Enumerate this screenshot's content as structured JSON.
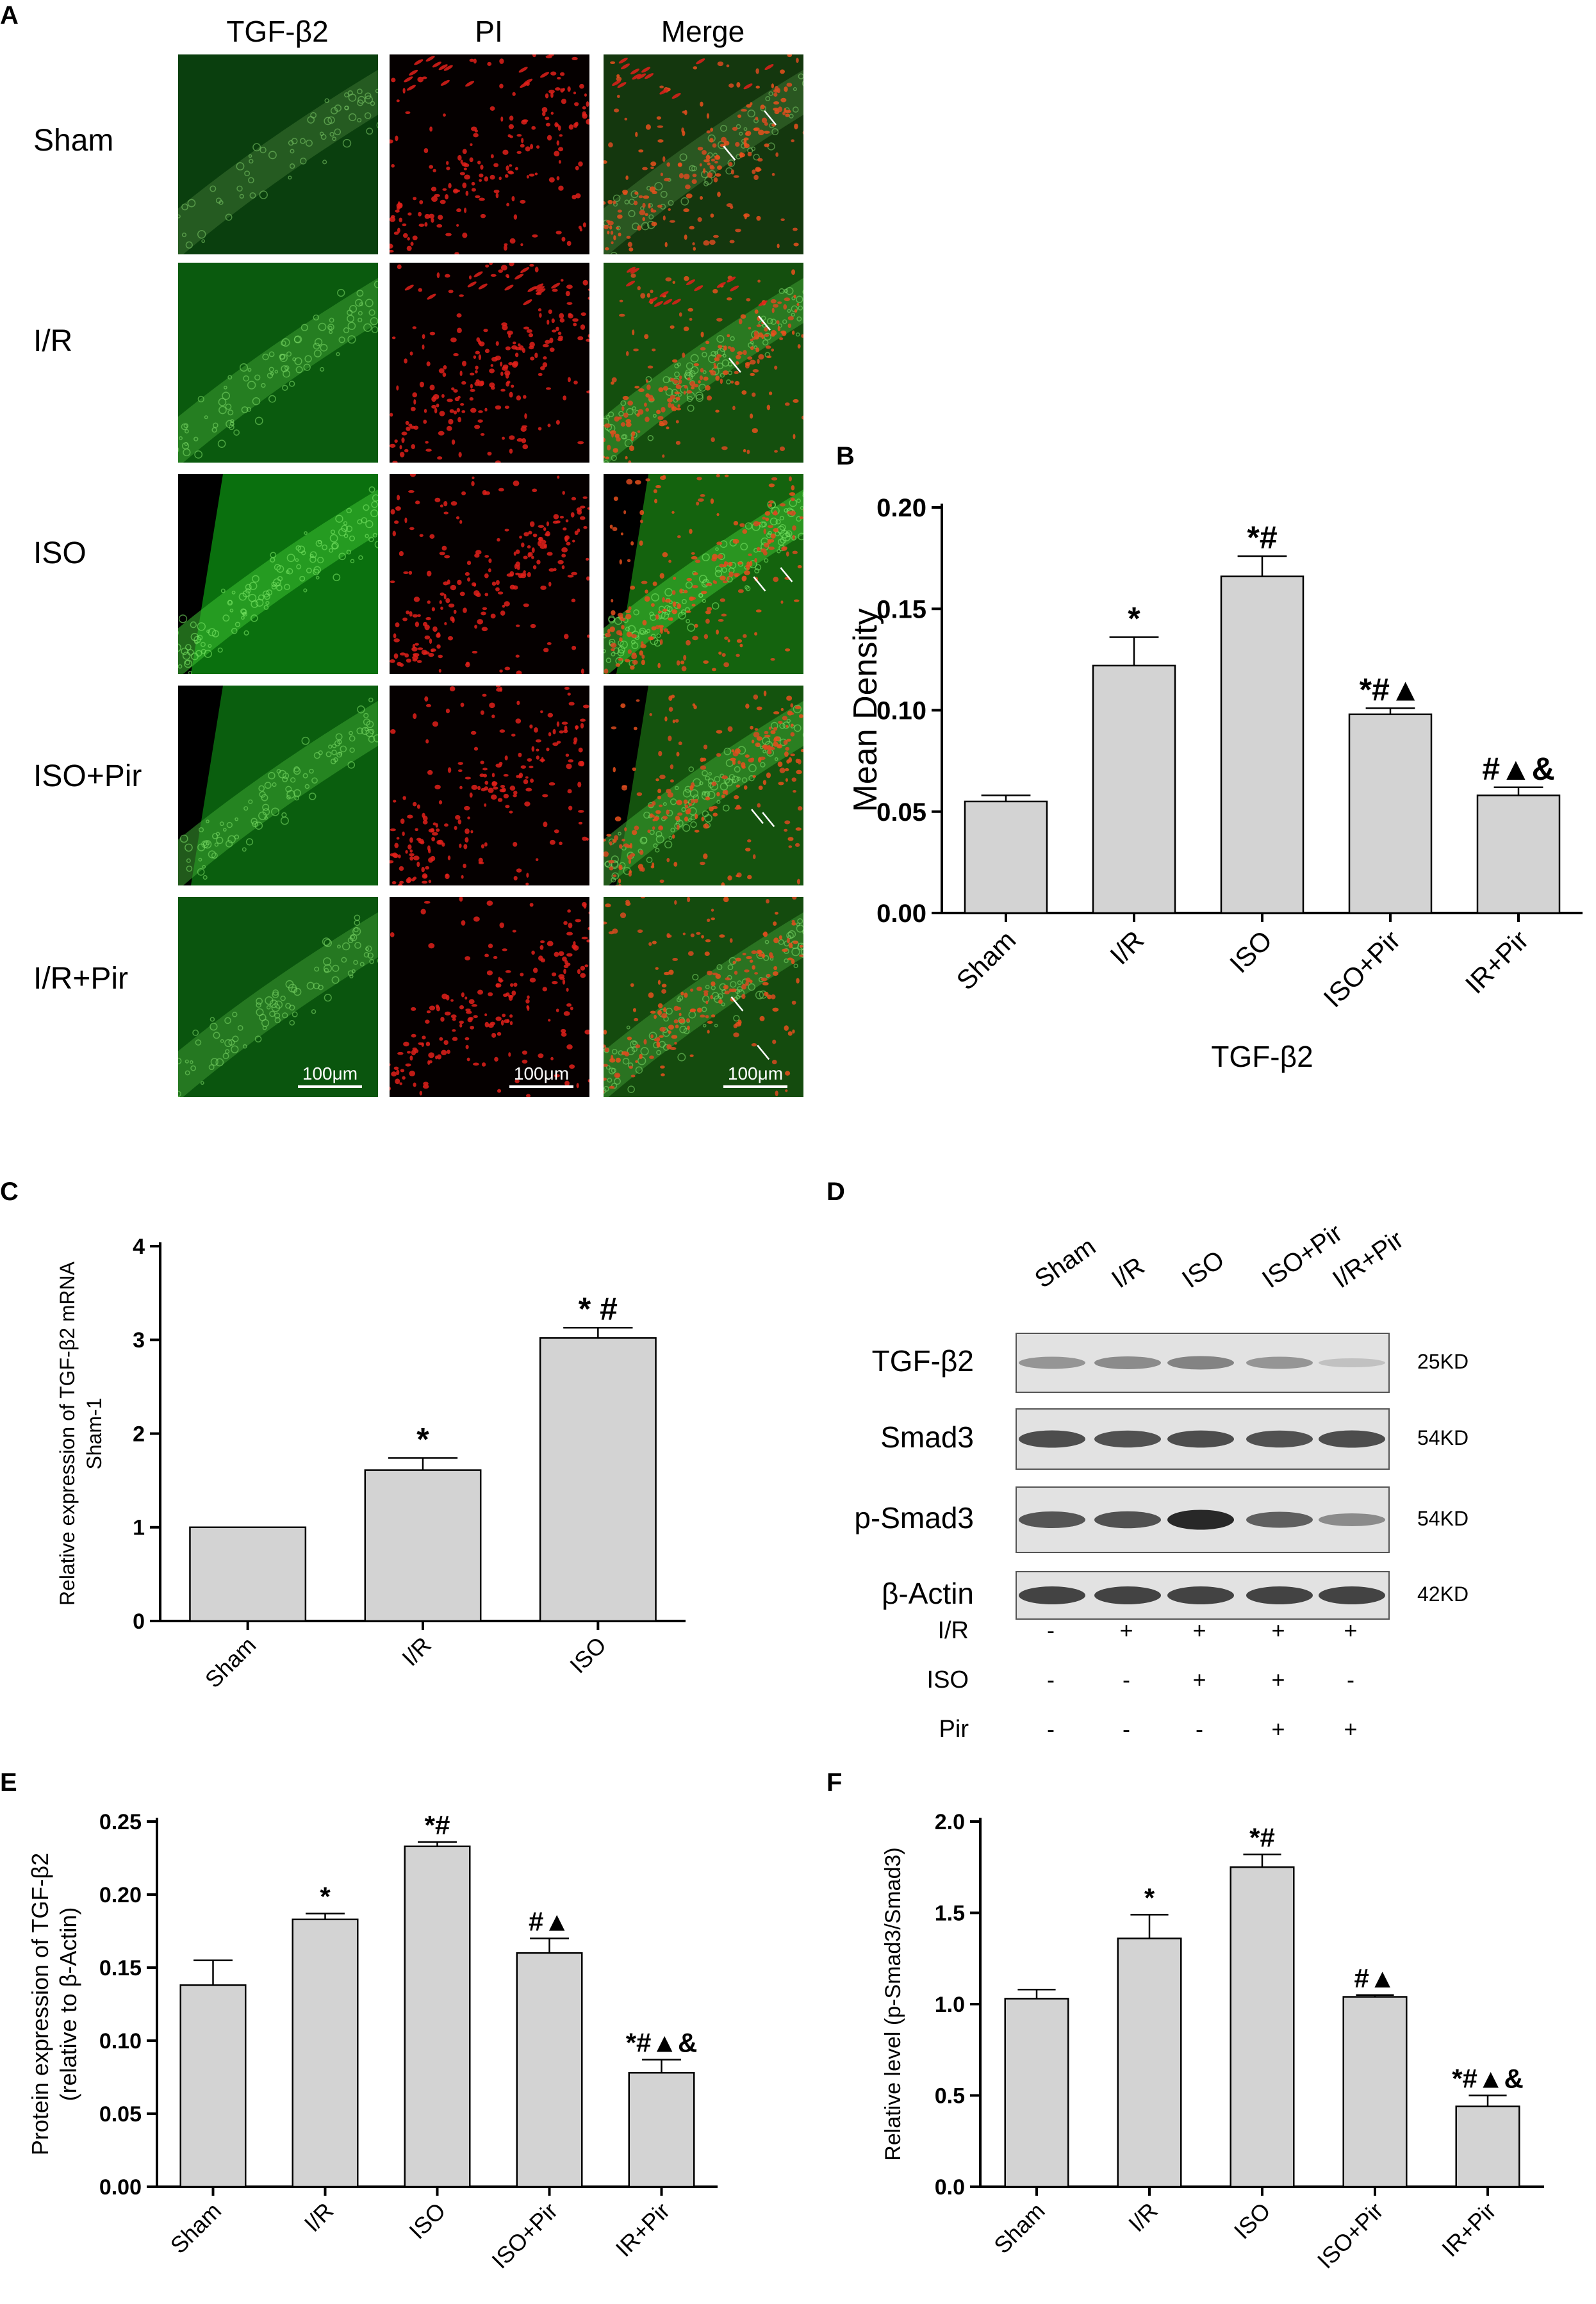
{
  "panel_labels": {
    "A": "A",
    "B": "B",
    "C": "C",
    "D": "D",
    "E": "E",
    "F": "F"
  },
  "panel_a": {
    "columns": [
      "TGF-β2",
      "PI",
      "Merge"
    ],
    "rows": [
      "Sham",
      "I/R",
      "ISO",
      "ISO+Pir",
      "I/R+Pir"
    ],
    "scale_label": "100μm",
    "colors": {
      "green": "#1f8a1f",
      "red": "#e0201a",
      "dark": "#000000"
    }
  },
  "chart_data": [
    {
      "id": "B",
      "type": "bar",
      "categories": [
        "Sham",
        "I/R",
        "ISO",
        "ISO+Pir",
        "IR+Pir"
      ],
      "values": [
        0.055,
        0.122,
        0.166,
        0.098,
        0.058
      ],
      "errors": [
        0.003,
        0.014,
        0.01,
        0.003,
        0.004
      ],
      "annotations": [
        "",
        "*",
        "*#",
        "*#▲",
        "#▲&"
      ],
      "xlabel": "TGF-β2",
      "ylabel": "Mean Density",
      "ylim": [
        0,
        0.2
      ],
      "yticks": [
        "0.00",
        "0.05",
        "0.10",
        "0.15",
        "0.20"
      ],
      "bar_color": "#d3d3d3"
    },
    {
      "id": "C",
      "type": "bar",
      "categories": [
        "Sham",
        "I/R",
        "ISO"
      ],
      "values": [
        1.0,
        1.61,
        3.02
      ],
      "errors": [
        0.0,
        0.13,
        0.11
      ],
      "annotations": [
        "",
        "*",
        "* #"
      ],
      "ylabel": "Relative expression of TGF-β2 mRNA",
      "ylabel2": "Sham-1",
      "ylim": [
        0,
        4
      ],
      "yticks": [
        "0",
        "1",
        "2",
        "3",
        "4"
      ],
      "bar_color": "#d3d3d3"
    },
    {
      "id": "E",
      "type": "bar",
      "categories": [
        "Sham",
        "I/R",
        "ISO",
        "ISO+Pir",
        "IR+Pir"
      ],
      "values": [
        0.138,
        0.183,
        0.233,
        0.16,
        0.078
      ],
      "errors": [
        0.017,
        0.004,
        0.003,
        0.01,
        0.009
      ],
      "annotations": [
        "",
        "*",
        "*#",
        "#▲",
        "*#▲&"
      ],
      "ylabel": "Protein expression of TGF-β2",
      "ylabel2": "(relative to β-Actin)",
      "ylim": [
        0,
        0.25
      ],
      "yticks": [
        "0.00",
        "0.05",
        "0.10",
        "0.15",
        "0.20",
        "0.25"
      ],
      "bar_color": "#d3d3d3"
    },
    {
      "id": "F",
      "type": "bar",
      "categories": [
        "Sham",
        "I/R",
        "ISO",
        "ISO+Pir",
        "IR+Pir"
      ],
      "values": [
        1.03,
        1.36,
        1.75,
        1.04,
        0.44
      ],
      "errors": [
        0.05,
        0.13,
        0.07,
        0.01,
        0.06
      ],
      "annotations": [
        "",
        "*",
        "*#",
        "#▲",
        "*#▲&"
      ],
      "ylabel": "Relative level (p-Smad3/Smad3)",
      "ylim": [
        0,
        2.0
      ],
      "yticks": [
        "0.0",
        "0.5",
        "1.0",
        "1.5",
        "2.0"
      ],
      "bar_color": "#d3d3d3"
    }
  ],
  "panel_d": {
    "lanes": [
      "Sham",
      "I/R",
      "ISO",
      "ISO+Pir",
      "I/R+Pir"
    ],
    "bands": [
      {
        "name": "TGF-β2",
        "kd": "25KD",
        "intensity": [
          0.35,
          0.4,
          0.45,
          0.35,
          0.1
        ]
      },
      {
        "name": "Smad3",
        "kd": "54KD",
        "intensity": [
          0.75,
          0.72,
          0.74,
          0.72,
          0.75
        ]
      },
      {
        "name": "p-Smad3",
        "kd": "54KD",
        "intensity": [
          0.7,
          0.72,
          0.95,
          0.65,
          0.4
        ]
      },
      {
        "name": "β-Actin",
        "kd": "42KD",
        "intensity": [
          0.8,
          0.8,
          0.8,
          0.8,
          0.8
        ]
      }
    ],
    "conditions": [
      {
        "name": "I/R",
        "signs": [
          "-",
          "+",
          "+",
          "+",
          "+"
        ]
      },
      {
        "name": "ISO",
        "signs": [
          "-",
          "-",
          "+",
          "+",
          "-"
        ]
      },
      {
        "name": "Pir",
        "signs": [
          "-",
          "-",
          "-",
          "+",
          "+"
        ]
      }
    ]
  }
}
